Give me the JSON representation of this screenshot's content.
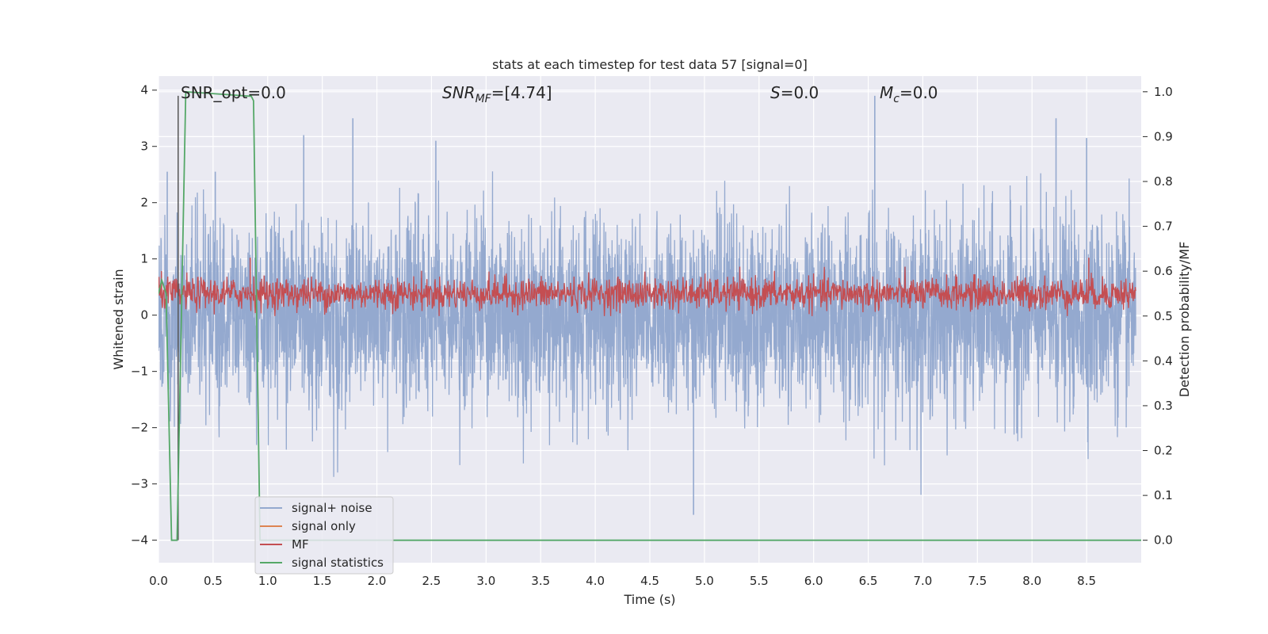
{
  "chart_data": {
    "type": "line",
    "title": "stats at each timestep for test data 57 [signal=0]",
    "xlabel": "Time (s)",
    "ylabel": "Whitened strain",
    "y2label": "Detection probability/MF",
    "xlim": [
      0.0,
      9.0
    ],
    "ylim": [
      -4.4,
      4.25
    ],
    "y2lim": [
      -0.05,
      1.035
    ],
    "xticks": [
      "0.0",
      "0.5",
      "1.0",
      "1.5",
      "2.0",
      "2.5",
      "3.0",
      "3.5",
      "4.0",
      "4.5",
      "5.0",
      "5.5",
      "6.0",
      "6.5",
      "7.0",
      "7.5",
      "8.0",
      "8.5"
    ],
    "yticks": [
      "4",
      "3",
      "2",
      "1",
      "0",
      "−1",
      "−2",
      "−3",
      "−4"
    ],
    "y2ticks": [
      "1.0",
      "0.9",
      "0.8",
      "0.7",
      "0.6",
      "0.5",
      "0.4",
      "0.3",
      "0.2",
      "0.1",
      "0.0"
    ],
    "grid": true,
    "legend_position": "lower-left",
    "annotations": {
      "snr_opt": "SNR_opt=0.0",
      "snr_mf_main": "SNR",
      "snr_mf_sub": "MF",
      "snr_mf_value": "=[4.74]",
      "s_main": "S",
      "s_value": "=0.0",
      "mc_main": "M",
      "mc_sub": "c",
      "mc_value": "=0.0"
    },
    "series": [
      {
        "name": "signal+ noise",
        "color": "#94a9cf",
        "axis": "left",
        "description": "noise-dominated whitened strain, approximately symmetric about 0 with amplitude about 1.5 and peaks near 3.9",
        "peaks": [
          [
            0.08,
            2.55
          ],
          [
            0.52,
            2.55
          ],
          [
            1.33,
            3.2
          ],
          [
            1.78,
            3.5
          ],
          [
            2.54,
            3.1
          ],
          [
            4.9,
            -3.55
          ],
          [
            6.56,
            3.9
          ],
          [
            8.22,
            3.5
          ],
          [
            8.5,
            3.15
          ]
        ]
      },
      {
        "name": "signal only",
        "color": "#dd8452",
        "axis": "left",
        "x": [],
        "y": []
      },
      {
        "name": "MF",
        "color": "#c44e52",
        "axis": "right",
        "description": "matched-filter output fluctuating between about 0.5 and 0.6",
        "peaks": [
          [
            0.84,
            0.63
          ],
          [
            8.52,
            0.63
          ]
        ]
      },
      {
        "name": "signal statistics",
        "color": "#55a868",
        "axis": "right",
        "x": [
          0.0,
          0.03,
          0.07,
          0.12,
          0.17,
          0.25,
          0.85,
          0.87,
          0.93,
          1.0,
          9.0
        ],
        "y": [
          0.55,
          0.58,
          0.55,
          0.0,
          0.0,
          1.0,
          0.99,
          0.98,
          0.0,
          0.0,
          0.0
        ]
      }
    ],
    "marker_line": {
      "x": 0.18,
      "color": "#555555"
    }
  }
}
